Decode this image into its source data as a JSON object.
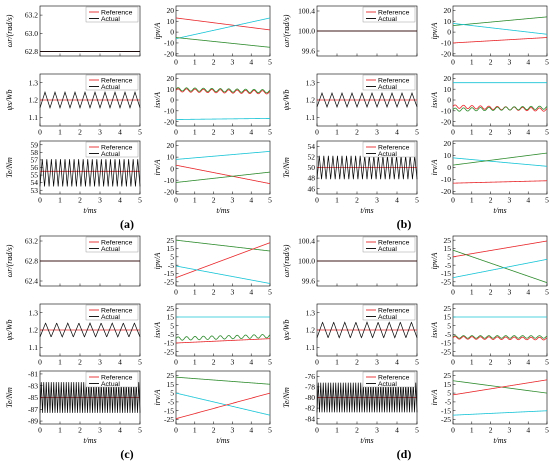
{
  "colors": {
    "reference": "#e8262a",
    "actual": "#000000",
    "red": "#e8262a",
    "green": "#2e8b2e",
    "cyan": "#17c4d6",
    "axis": "#000000",
    "grid": "#d0d0d0"
  },
  "chart_data": [
    {
      "panel": "(a)",
      "type": "line",
      "x_unit_label": "t/ms",
      "xlim": [
        0,
        5
      ],
      "xticks": [
        "0",
        "1",
        "2",
        "3",
        "4",
        "5"
      ],
      "subplots": [
        {
          "id": "a-speed",
          "ylabel": "ωr/(rad/s)",
          "yticks": [
            "62.8",
            "63.0",
            "63.2"
          ],
          "ylim": [
            62.75,
            63.3
          ],
          "legend": [
            "Reference",
            "Actual"
          ],
          "series": [
            {
              "name": "Reference",
              "style": "flat",
              "value": 62.8,
              "color": "red"
            },
            {
              "name": "Actual",
              "style": "flat",
              "value": 62.8,
              "color": "black"
            }
          ]
        },
        {
          "id": "a-flux",
          "ylabel": "ψs/Wb",
          "yticks": [
            "1.1",
            "1.2",
            "1.3"
          ],
          "ylim": [
            1.05,
            1.35
          ],
          "legend": [
            "Reference",
            "Actual"
          ],
          "series": [
            {
              "name": "Reference",
              "style": "flat",
              "value": 1.2,
              "color": "red"
            },
            {
              "name": "Actual",
              "style": "tri",
              "base": 1.2,
              "amp": 0.045,
              "periods": 10,
              "color": "black"
            }
          ]
        },
        {
          "id": "a-torque",
          "ylabel": "Te/Nm",
          "yticks": [
            "53",
            "54",
            "55",
            "56",
            "57",
            "58",
            "59"
          ],
          "ylim": [
            52.5,
            59.5
          ],
          "legend": [
            "Reference",
            "Actual"
          ],
          "series": [
            {
              "name": "Reference",
              "style": "flat",
              "value": 55.5,
              "color": "red"
            },
            {
              "name": "Actual",
              "style": "tri",
              "base": 55.3,
              "amp": 1.8,
              "periods": 22,
              "color": "black"
            }
          ]
        },
        {
          "id": "a-ipv",
          "ylabel": "ipv/A",
          "yticks": [
            "-20",
            "-10",
            "0",
            "10",
            "20"
          ],
          "ylim": [
            -22,
            24
          ],
          "series": [
            {
              "name": "red",
              "style": "lin",
              "start": 13,
              "end": 2,
              "color": "red"
            },
            {
              "name": "cyan",
              "style": "lin",
              "start": -6,
              "end": 13,
              "color": "cyan"
            },
            {
              "name": "green",
              "style": "lin",
              "start": -5,
              "end": -14,
              "color": "green"
            }
          ]
        },
        {
          "id": "a-isv",
          "ylabel": "isv/A",
          "yticks": [
            "-20",
            "-10",
            "0",
            "10",
            "20"
          ],
          "ylim": [
            -24,
            24
          ],
          "series": [
            {
              "name": "red",
              "style": "lin",
              "start": 9,
              "end": 7,
              "color": "red",
              "wiggle": 1.5
            },
            {
              "name": "green",
              "style": "lin",
              "start": 10,
              "end": 8,
              "color": "green",
              "wiggle": 1.5
            },
            {
              "name": "cyan",
              "style": "lin",
              "start": -18,
              "end": -17,
              "color": "cyan"
            }
          ]
        },
        {
          "id": "a-irv",
          "ylabel": "irv/A",
          "yticks": [
            "-20",
            "-10",
            "0",
            "10",
            "20"
          ],
          "ylim": [
            -22,
            24
          ],
          "series": [
            {
              "name": "cyan",
              "style": "lin",
              "start": 8,
              "end": 15,
              "color": "cyan"
            },
            {
              "name": "red",
              "style": "lin",
              "start": 3,
              "end": -13,
              "color": "red"
            },
            {
              "name": "green",
              "style": "lin",
              "start": -12,
              "end": -3,
              "color": "green"
            }
          ]
        }
      ]
    },
    {
      "panel": "(b)",
      "type": "line",
      "x_unit_label": "t/ms",
      "xlim": [
        0,
        5
      ],
      "xticks": [
        "0",
        "1",
        "2",
        "3",
        "4",
        "5"
      ],
      "subplots": [
        {
          "id": "b-speed",
          "ylabel": "ωr/(rad/s)",
          "yticks": [
            "99.6",
            "100.0",
            "100.4"
          ],
          "ylim": [
            99.5,
            100.5
          ],
          "legend": [
            "Reference",
            "Actual"
          ],
          "series": [
            {
              "name": "Reference",
              "style": "flat",
              "value": 100.0,
              "color": "red"
            },
            {
              "name": "Actual",
              "style": "flat",
              "value": 100.0,
              "color": "black"
            }
          ]
        },
        {
          "id": "b-flux",
          "ylabel": "ψs/Wb",
          "yticks": [
            "1.1",
            "1.2",
            "1.3"
          ],
          "ylim": [
            1.05,
            1.35
          ],
          "legend": [
            "Reference",
            "Actual"
          ],
          "series": [
            {
              "name": "Reference",
              "style": "flat",
              "value": 1.2,
              "color": "red"
            },
            {
              "name": "Actual",
              "style": "tri",
              "base": 1.2,
              "amp": 0.04,
              "periods": 10,
              "color": "black"
            }
          ]
        },
        {
          "id": "b-torque",
          "ylabel": "Te/Nm",
          "yticks": [
            "46",
            "48",
            "50",
            "52",
            "54"
          ],
          "ylim": [
            45,
            55
          ],
          "legend": [
            "Reference",
            "Actual"
          ],
          "series": [
            {
              "name": "Reference",
              "style": "flat",
              "value": 50,
              "color": "red"
            },
            {
              "name": "Actual",
              "style": "tri",
              "base": 50,
              "amp": 2.2,
              "periods": 22,
              "color": "black"
            }
          ]
        },
        {
          "id": "b-ipv",
          "ylabel": "ipv/A",
          "yticks": [
            "-20",
            "-10",
            "0",
            "10",
            "20"
          ],
          "ylim": [
            -22,
            24
          ],
          "series": [
            {
              "name": "green",
              "style": "lin",
              "start": 6,
              "end": 14,
              "color": "green"
            },
            {
              "name": "cyan",
              "style": "lin",
              "start": 8,
              "end": -2,
              "color": "cyan"
            },
            {
              "name": "red",
              "style": "lin",
              "start": -10,
              "end": -5,
              "color": "red"
            }
          ]
        },
        {
          "id": "b-isv",
          "ylabel": "isv/A",
          "yticks": [
            "-20",
            "-10",
            "0",
            "10",
            "20"
          ],
          "ylim": [
            -24,
            24
          ],
          "series": [
            {
              "name": "cyan",
              "style": "lin",
              "start": 16,
              "end": 16,
              "color": "cyan"
            },
            {
              "name": "red",
              "style": "lin",
              "start": -6,
              "end": -9,
              "color": "red",
              "wiggle": 1.5
            },
            {
              "name": "green",
              "style": "lin",
              "start": -9,
              "end": -7,
              "color": "green",
              "wiggle": 1.5
            }
          ]
        },
        {
          "id": "b-irv",
          "ylabel": "irv/A",
          "yticks": [
            "-20",
            "-10",
            "0",
            "10",
            "20"
          ],
          "ylim": [
            -22,
            22
          ],
          "series": [
            {
              "name": "cyan",
              "style": "lin",
              "start": 8,
              "end": 1,
              "color": "cyan"
            },
            {
              "name": "green",
              "style": "lin",
              "start": 2,
              "end": 12,
              "color": "green"
            },
            {
              "name": "red",
              "style": "lin",
              "start": -13,
              "end": -11,
              "color": "red"
            }
          ]
        }
      ]
    },
    {
      "panel": "(c)",
      "type": "line",
      "x_unit_label": "t/ms",
      "xlim": [
        0,
        5
      ],
      "xticks": [
        "0",
        "1",
        "2",
        "3",
        "4",
        "5"
      ],
      "subplots": [
        {
          "id": "c-speed",
          "ylabel": "ωr/(rad/s)",
          "yticks": [
            "62.4",
            "62.8",
            "63.2"
          ],
          "ylim": [
            62.3,
            63.3
          ],
          "legend": [
            "Reference",
            "Actual"
          ],
          "series": [
            {
              "name": "Reference",
              "style": "flat",
              "value": 62.8,
              "color": "red"
            },
            {
              "name": "Actual",
              "style": "flat",
              "value": 62.8,
              "color": "black"
            }
          ]
        },
        {
          "id": "c-flux",
          "ylabel": "ψs/Wb",
          "yticks": [
            "1.1",
            "1.2",
            "1.3"
          ],
          "ylim": [
            1.05,
            1.35
          ],
          "legend": [
            "Reference",
            "Actual"
          ],
          "series": [
            {
              "name": "Reference",
              "style": "flat",
              "value": 1.2,
              "color": "red"
            },
            {
              "name": "Actual",
              "style": "tri",
              "base": 1.2,
              "amp": 0.04,
              "periods": 9,
              "color": "black"
            }
          ]
        },
        {
          "id": "c-torque",
          "ylabel": "Te/Nm",
          "yticks": [
            "-89",
            "-87",
            "-85",
            "-83",
            "-81"
          ],
          "ylim": [
            -89.5,
            -80.5
          ],
          "legend": [
            "Reference",
            "Actual"
          ],
          "series": [
            {
              "name": "Reference",
              "style": "flat",
              "value": -85,
              "color": "red"
            },
            {
              "name": "Actual",
              "style": "tri",
              "base": -85,
              "amp": 2.6,
              "periods": 40,
              "color": "black"
            }
          ]
        },
        {
          "id": "c-ipv",
          "ylabel": "ipv/A",
          "yticks": [
            "-25",
            "-15",
            "-5",
            "5",
            "15",
            "25"
          ],
          "ylim": [
            -30,
            30
          ],
          "series": [
            {
              "name": "green",
              "style": "lin",
              "start": 25,
              "end": 12,
              "color": "green"
            },
            {
              "name": "red",
              "style": "lin",
              "start": -20,
              "end": 22,
              "color": "red"
            },
            {
              "name": "cyan",
              "style": "lin",
              "start": -6,
              "end": -27,
              "color": "cyan"
            }
          ]
        },
        {
          "id": "c-isv",
          "ylabel": "isv/A",
          "yticks": [
            "-25",
            "-15",
            "-5",
            "5",
            "15",
            "25"
          ],
          "ylim": [
            -30,
            30
          ],
          "series": [
            {
              "name": "cyan",
              "style": "lin",
              "start": 15,
              "end": 15,
              "color": "cyan"
            },
            {
              "name": "green",
              "style": "lin",
              "start": -10,
              "end": -7,
              "color": "green",
              "wiggle": 2
            },
            {
              "name": "red",
              "style": "lin",
              "start": -15,
              "end": -10,
              "color": "red"
            }
          ]
        },
        {
          "id": "c-irv",
          "ylabel": "irv/A",
          "yticks": [
            "-25",
            "-15",
            "-5",
            "5",
            "15",
            "25"
          ],
          "ylim": [
            -30,
            30
          ],
          "series": [
            {
              "name": "green",
              "style": "lin",
              "start": 23,
              "end": 15,
              "color": "green"
            },
            {
              "name": "cyan",
              "style": "lin",
              "start": 5,
              "end": -20,
              "color": "cyan"
            },
            {
              "name": "red",
              "style": "lin",
              "start": -24,
              "end": 5,
              "color": "red"
            }
          ]
        }
      ]
    },
    {
      "panel": "(d)",
      "type": "line",
      "x_unit_label": "t/ms",
      "xlim": [
        0,
        5
      ],
      "xticks": [
        "0",
        "1",
        "2",
        "3",
        "4",
        "5"
      ],
      "subplots": [
        {
          "id": "d-speed",
          "ylabel": "ωr/(rad/s)",
          "yticks": [
            "99.6",
            "100.0",
            "100.4"
          ],
          "ylim": [
            99.5,
            100.5
          ],
          "legend": [
            "Reference",
            "Actual"
          ],
          "series": [
            {
              "name": "Reference",
              "style": "flat",
              "value": 100.0,
              "color": "red"
            },
            {
              "name": "Actual",
              "style": "flat",
              "value": 100.0,
              "color": "black"
            }
          ]
        },
        {
          "id": "d-flux",
          "ylabel": "ψs/Wb",
          "yticks": [
            "1.1",
            "1.2",
            "1.3"
          ],
          "ylim": [
            1.05,
            1.35
          ],
          "legend": [
            "Reference",
            "Actual"
          ],
          "series": [
            {
              "name": "Reference",
              "style": "flat",
              "value": 1.2,
              "color": "red"
            },
            {
              "name": "Actual",
              "style": "tri",
              "base": 1.2,
              "amp": 0.045,
              "periods": 9,
              "color": "black"
            }
          ]
        },
        {
          "id": "d-torque",
          "ylabel": "Te/Nm",
          "yticks": [
            "-84",
            "-82",
            "-80",
            "-78",
            "-76"
          ],
          "ylim": [
            -85,
            -75
          ],
          "legend": [
            "Reference",
            "Actual"
          ],
          "series": [
            {
              "name": "Reference",
              "style": "flat",
              "value": -80,
              "color": "red"
            },
            {
              "name": "Actual",
              "style": "tri",
              "base": -80,
              "amp": 2.8,
              "periods": 40,
              "color": "black"
            }
          ]
        },
        {
          "id": "d-ipv",
          "ylabel": "ipv/A",
          "yticks": [
            "-25",
            "-15",
            "-5",
            "5",
            "15",
            "25"
          ],
          "ylim": [
            -30,
            30
          ],
          "series": [
            {
              "name": "red",
              "style": "lin",
              "start": 5,
              "end": 24,
              "color": "red"
            },
            {
              "name": "green",
              "style": "lin",
              "start": 13,
              "end": -26,
              "color": "green"
            },
            {
              "name": "cyan",
              "style": "lin",
              "start": -20,
              "end": 2,
              "color": "cyan"
            }
          ]
        },
        {
          "id": "d-isv",
          "ylabel": "isv/A",
          "yticks": [
            "-25",
            "-15",
            "-5",
            "5",
            "15",
            "25"
          ],
          "ylim": [
            -30,
            30
          ],
          "series": [
            {
              "name": "cyan",
              "style": "lin",
              "start": 15,
              "end": 15,
              "color": "cyan"
            },
            {
              "name": "green",
              "style": "lin",
              "start": -8,
              "end": -8,
              "color": "green",
              "wiggle": 1.5
            },
            {
              "name": "red",
              "style": "lin",
              "start": -9,
              "end": -10,
              "color": "red",
              "wiggle": 1.5
            }
          ]
        },
        {
          "id": "d-irv",
          "ylabel": "irv/A",
          "yticks": [
            "-25",
            "-15",
            "-5",
            "5",
            "15",
            "25"
          ],
          "ylim": [
            -30,
            30
          ],
          "series": [
            {
              "name": "green",
              "style": "lin",
              "start": 19,
              "end": 5,
              "color": "green"
            },
            {
              "name": "red",
              "style": "lin",
              "start": 3,
              "end": 20,
              "color": "red"
            },
            {
              "name": "cyan",
              "style": "lin",
              "start": -20,
              "end": -15,
              "color": "cyan"
            }
          ]
        }
      ]
    }
  ]
}
